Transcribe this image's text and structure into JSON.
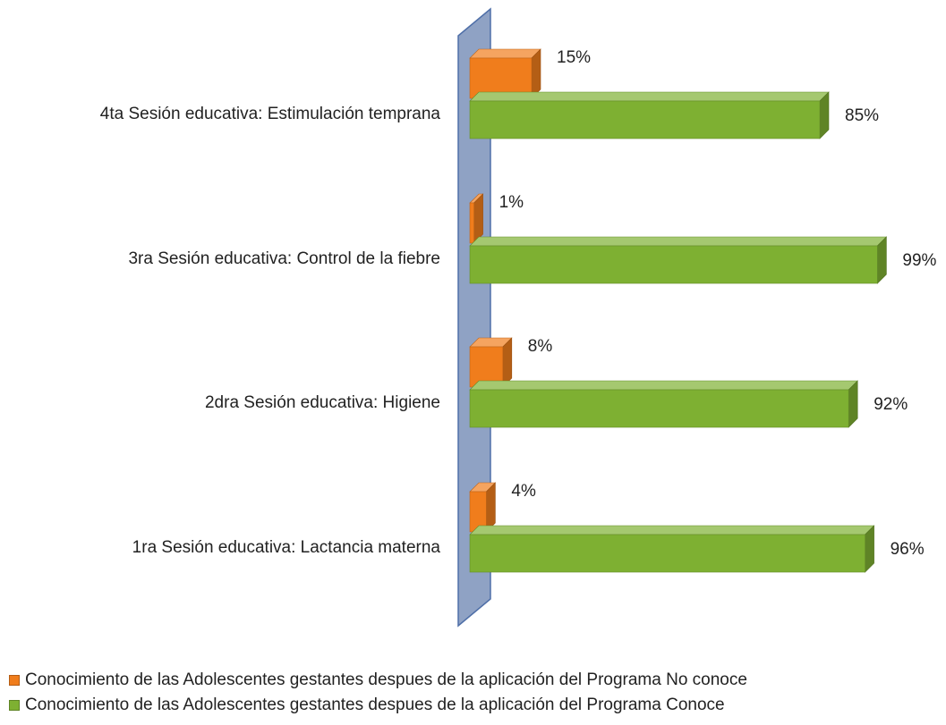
{
  "chart_data": {
    "type": "bar3d-horizontal",
    "categories": [
      "1ra Sesión educativa: Lactancia materna",
      "2dra Sesión educativa: Higiene",
      "3ra Sesión educativa: Control de la fiebre",
      "4ta Sesión educativa: Estimulación temprana"
    ],
    "series": [
      {
        "name": "Conocimiento de las Adolescentes gestantes despues de la aplicación del Programa No conoce",
        "color": "#f07d1c",
        "values": [
          4,
          8,
          1,
          15
        ],
        "value_labels": [
          "4%",
          "8%",
          "1%",
          "15%"
        ]
      },
      {
        "name": "Conocimiento de las Adolescentes gestantes despues de la aplicación del Programa Conoce",
        "color": "#7eb032",
        "values": [
          96,
          92,
          99,
          85
        ],
        "value_labels": [
          "96%",
          "92%",
          "99%",
          "85%"
        ]
      }
    ]
  }
}
